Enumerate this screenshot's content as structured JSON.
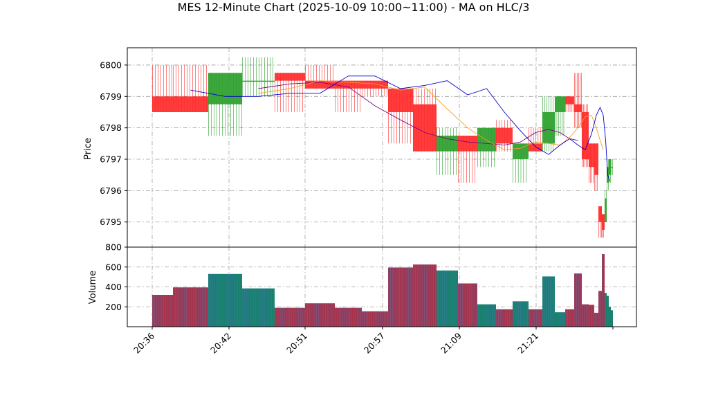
{
  "chart_data": {
    "type": "candlestick_with_volume",
    "title": "MES 12-Minute Chart (2025-10-09 10:00~11:00) - MA on HLC/3",
    "price_panel": {
      "ylabel": "Price",
      "ylim": [
        6794.2,
        6800.55
      ],
      "y_ticks": [
        6795,
        6796,
        6797,
        6798,
        6799,
        6800
      ],
      "grid": true
    },
    "volume_panel": {
      "ylabel": "Volume",
      "ylim": [
        0,
        800
      ],
      "y_ticks": [
        200,
        400,
        600,
        800
      ],
      "grid": true
    },
    "x_axis": {
      "tick_labels": [
        "20:36",
        "20:42",
        "20:51",
        "20:57",
        "21:09",
        "21:21"
      ]
    },
    "colors": {
      "up": "#2ca02c",
      "down": "#ff2a2a",
      "volume_up": "#17806d",
      "volume_down": "#a8324a",
      "ma_fast": "#0000cc",
      "ma_mid": "#f0a020",
      "ma_slow": "#800080",
      "grid": "#a0a0a0"
    },
    "candles": [
      {
        "open": 6799.0,
        "high": 6800.0,
        "low": 6798.5,
        "close": 6798.5,
        "volume": 320
      },
      {
        "open": 6799.0,
        "high": 6800.0,
        "low": 6798.5,
        "close": 6798.5,
        "volume": 395
      },
      {
        "open": 6798.75,
        "high": 6799.75,
        "low": 6797.75,
        "close": 6799.75,
        "volume": 530
      },
      {
        "open": 6799.5,
        "high": 6800.25,
        "low": 6799.0,
        "close": 6799.5,
        "volume": 385
      },
      {
        "open": 6799.75,
        "high": 6799.75,
        "low": 6798.5,
        "close": 6799.5,
        "volume": 190
      },
      {
        "open": 6799.5,
        "high": 6800.0,
        "low": 6799.25,
        "close": 6799.25,
        "volume": 235
      },
      {
        "open": 6799.5,
        "high": 6799.5,
        "low": 6798.5,
        "close": 6799.25,
        "volume": 190
      },
      {
        "open": 6799.5,
        "high": 6799.5,
        "low": 6799.0,
        "close": 6799.25,
        "volume": 155
      },
      {
        "open": 6799.25,
        "high": 6799.25,
        "low": 6797.5,
        "close": 6798.5,
        "volume": 595
      },
      {
        "open": 6798.75,
        "high": 6799.25,
        "low": 6797.25,
        "close": 6797.25,
        "volume": 625
      },
      {
        "open": 6797.25,
        "high": 6798.0,
        "low": 6796.5,
        "close": 6797.75,
        "volume": 565
      },
      {
        "open": 6797.75,
        "high": 6797.75,
        "low": 6796.25,
        "close": 6797.25,
        "volume": 435
      },
      {
        "open": 6797.25,
        "high": 6798.0,
        "low": 6796.75,
        "close": 6798.0,
        "volume": 225
      },
      {
        "open": 6798.0,
        "high": 6798.25,
        "low": 6797.25,
        "close": 6797.5,
        "volume": 175
      },
      {
        "open": 6797.0,
        "high": 6797.5,
        "low": 6796.25,
        "close": 6797.5,
        "volume": 255
      },
      {
        "open": 6797.5,
        "high": 6798.0,
        "low": 6797.25,
        "close": 6797.25,
        "volume": 175
      },
      {
        "open": 6797.5,
        "high": 6799.0,
        "low": 6797.25,
        "close": 6798.5,
        "volume": 505
      },
      {
        "open": 6798.5,
        "high": 6799.0,
        "low": 6797.75,
        "close": 6799.0,
        "volume": 145
      },
      {
        "open": 6799.0,
        "high": 6799.0,
        "low": 6798.5,
        "close": 6798.75,
        "volume": 175
      },
      {
        "open": 6798.75,
        "high": 6799.75,
        "low": 6798.0,
        "close": 6798.5,
        "volume": 535
      },
      {
        "open": 6798.5,
        "high": 6798.75,
        "low": 6796.75,
        "close": 6797.0,
        "volume": 225
      },
      {
        "open": 6797.5,
        "high": 6797.5,
        "low": 6796.25,
        "close": 6796.75,
        "volume": 220
      },
      {
        "open": 6797.5,
        "high": 6797.5,
        "low": 6796.0,
        "close": 6796.5,
        "volume": 140
      },
      {
        "open": 6795.5,
        "high": 6795.5,
        "low": 6794.5,
        "close": 6795.0,
        "volume": 360
      },
      {
        "open": 6795.25,
        "high": 6795.25,
        "low": 6794.5,
        "close": 6794.75,
        "volume": 730
      },
      {
        "open": 6795.0,
        "high": 6796.0,
        "low": 6795.0,
        "close": 6795.75,
        "volume": 340
      },
      {
        "open": 6796.25,
        "high": 6797.0,
        "low": 6796.0,
        "close": 6796.75,
        "volume": 310
      },
      {
        "open": 6796.5,
        "high": 6797.0,
        "low": 6796.25,
        "close": 6797.0,
        "volume": 200
      },
      {
        "open": 6796.75,
        "high": 6797.0,
        "low": 6796.5,
        "close": 6796.75,
        "volume": 165
      }
    ],
    "ma_fast": [
      6799.2,
      6799.0,
      6799.0,
      6799.1,
      6799.1,
      6799.65,
      6799.65,
      6799.25,
      6799.35,
      6799.5,
      6799.05,
      6799.25,
      6798.5,
      6797.9,
      6797.4,
      6797.15,
      6797.45,
      6797.65,
      6797.45,
      6797.3,
      6797.8,
      6798.4,
      6798.65,
      6798.4,
      6797.6,
      6796.5,
      6796.3
    ],
    "ma_mid": [
      6799.1,
      6799.25,
      6799.5,
      6799.45,
      6799.4,
      6799.2,
      6799.3,
      6798.6,
      6798.0,
      6797.6,
      6797.3,
      6797.35,
      6797.55,
      6797.5,
      6797.45,
      6797.7,
      6798.0,
      6798.35,
      6798.4,
      6798.0,
      6797.6,
      6797.3
    ],
    "ma_slow": [
      6799.25,
      6799.4,
      6799.45,
      6799.3,
      6798.7,
      6798.25,
      6797.85,
      6797.65,
      6797.55,
      6797.5,
      6797.45,
      6797.55,
      6797.85,
      6797.95,
      6797.85,
      6797.65,
      6797.6
    ]
  }
}
